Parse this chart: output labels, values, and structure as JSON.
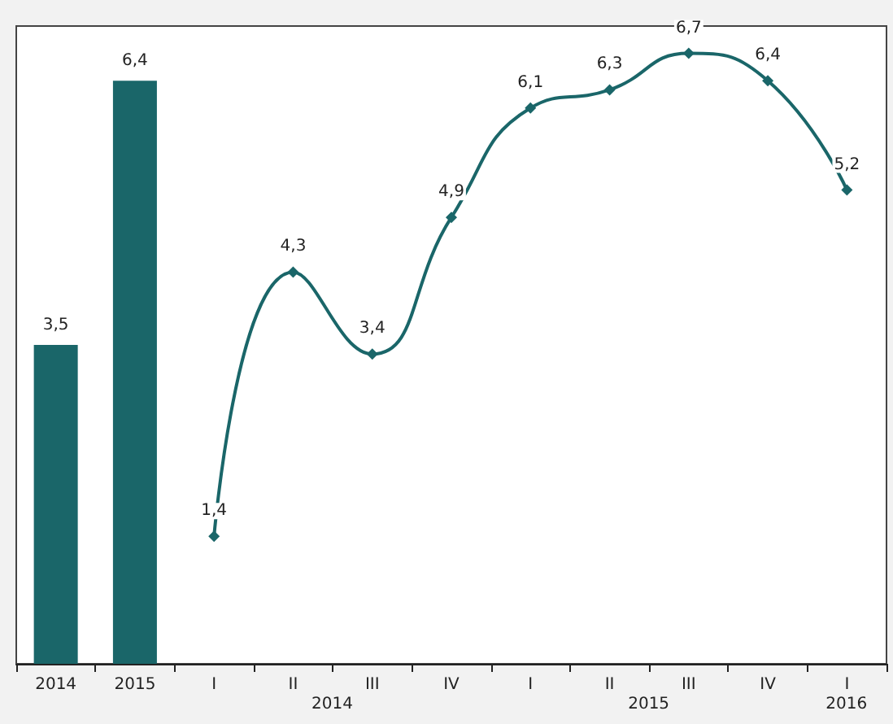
{
  "chart_data": {
    "type": "bar",
    "categories": [
      "2014",
      "2015",
      "I",
      "II",
      "III",
      "IV",
      "I",
      "II",
      "III",
      "IV",
      "I"
    ],
    "series": [
      {
        "color": "#1a6669",
        "values": [
          3.5,
          6.4,
          null,
          null,
          null,
          null,
          null,
          null,
          null,
          null,
          null
        ],
        "value_labels": [
          "3,5",
          "6,4",
          null,
          null,
          null,
          null,
          null,
          null,
          null,
          null,
          null
        ]
      },
      {
        "type": "line",
        "color": "#1a6669",
        "marker": "diamond",
        "values": [
          null,
          null,
          1.4,
          4.3,
          3.4,
          4.9,
          6.1,
          6.3,
          6.7,
          6.4,
          5.2
        ],
        "value_labels": [
          null,
          null,
          "1,4",
          "4,3",
          "3,4",
          "4,9",
          "6,1",
          "6,3",
          "6,7",
          "6,4",
          "5,2"
        ]
      }
    ],
    "annotations": [
      "2014",
      "2015",
      "2016"
    ],
    "grid": false
  }
}
